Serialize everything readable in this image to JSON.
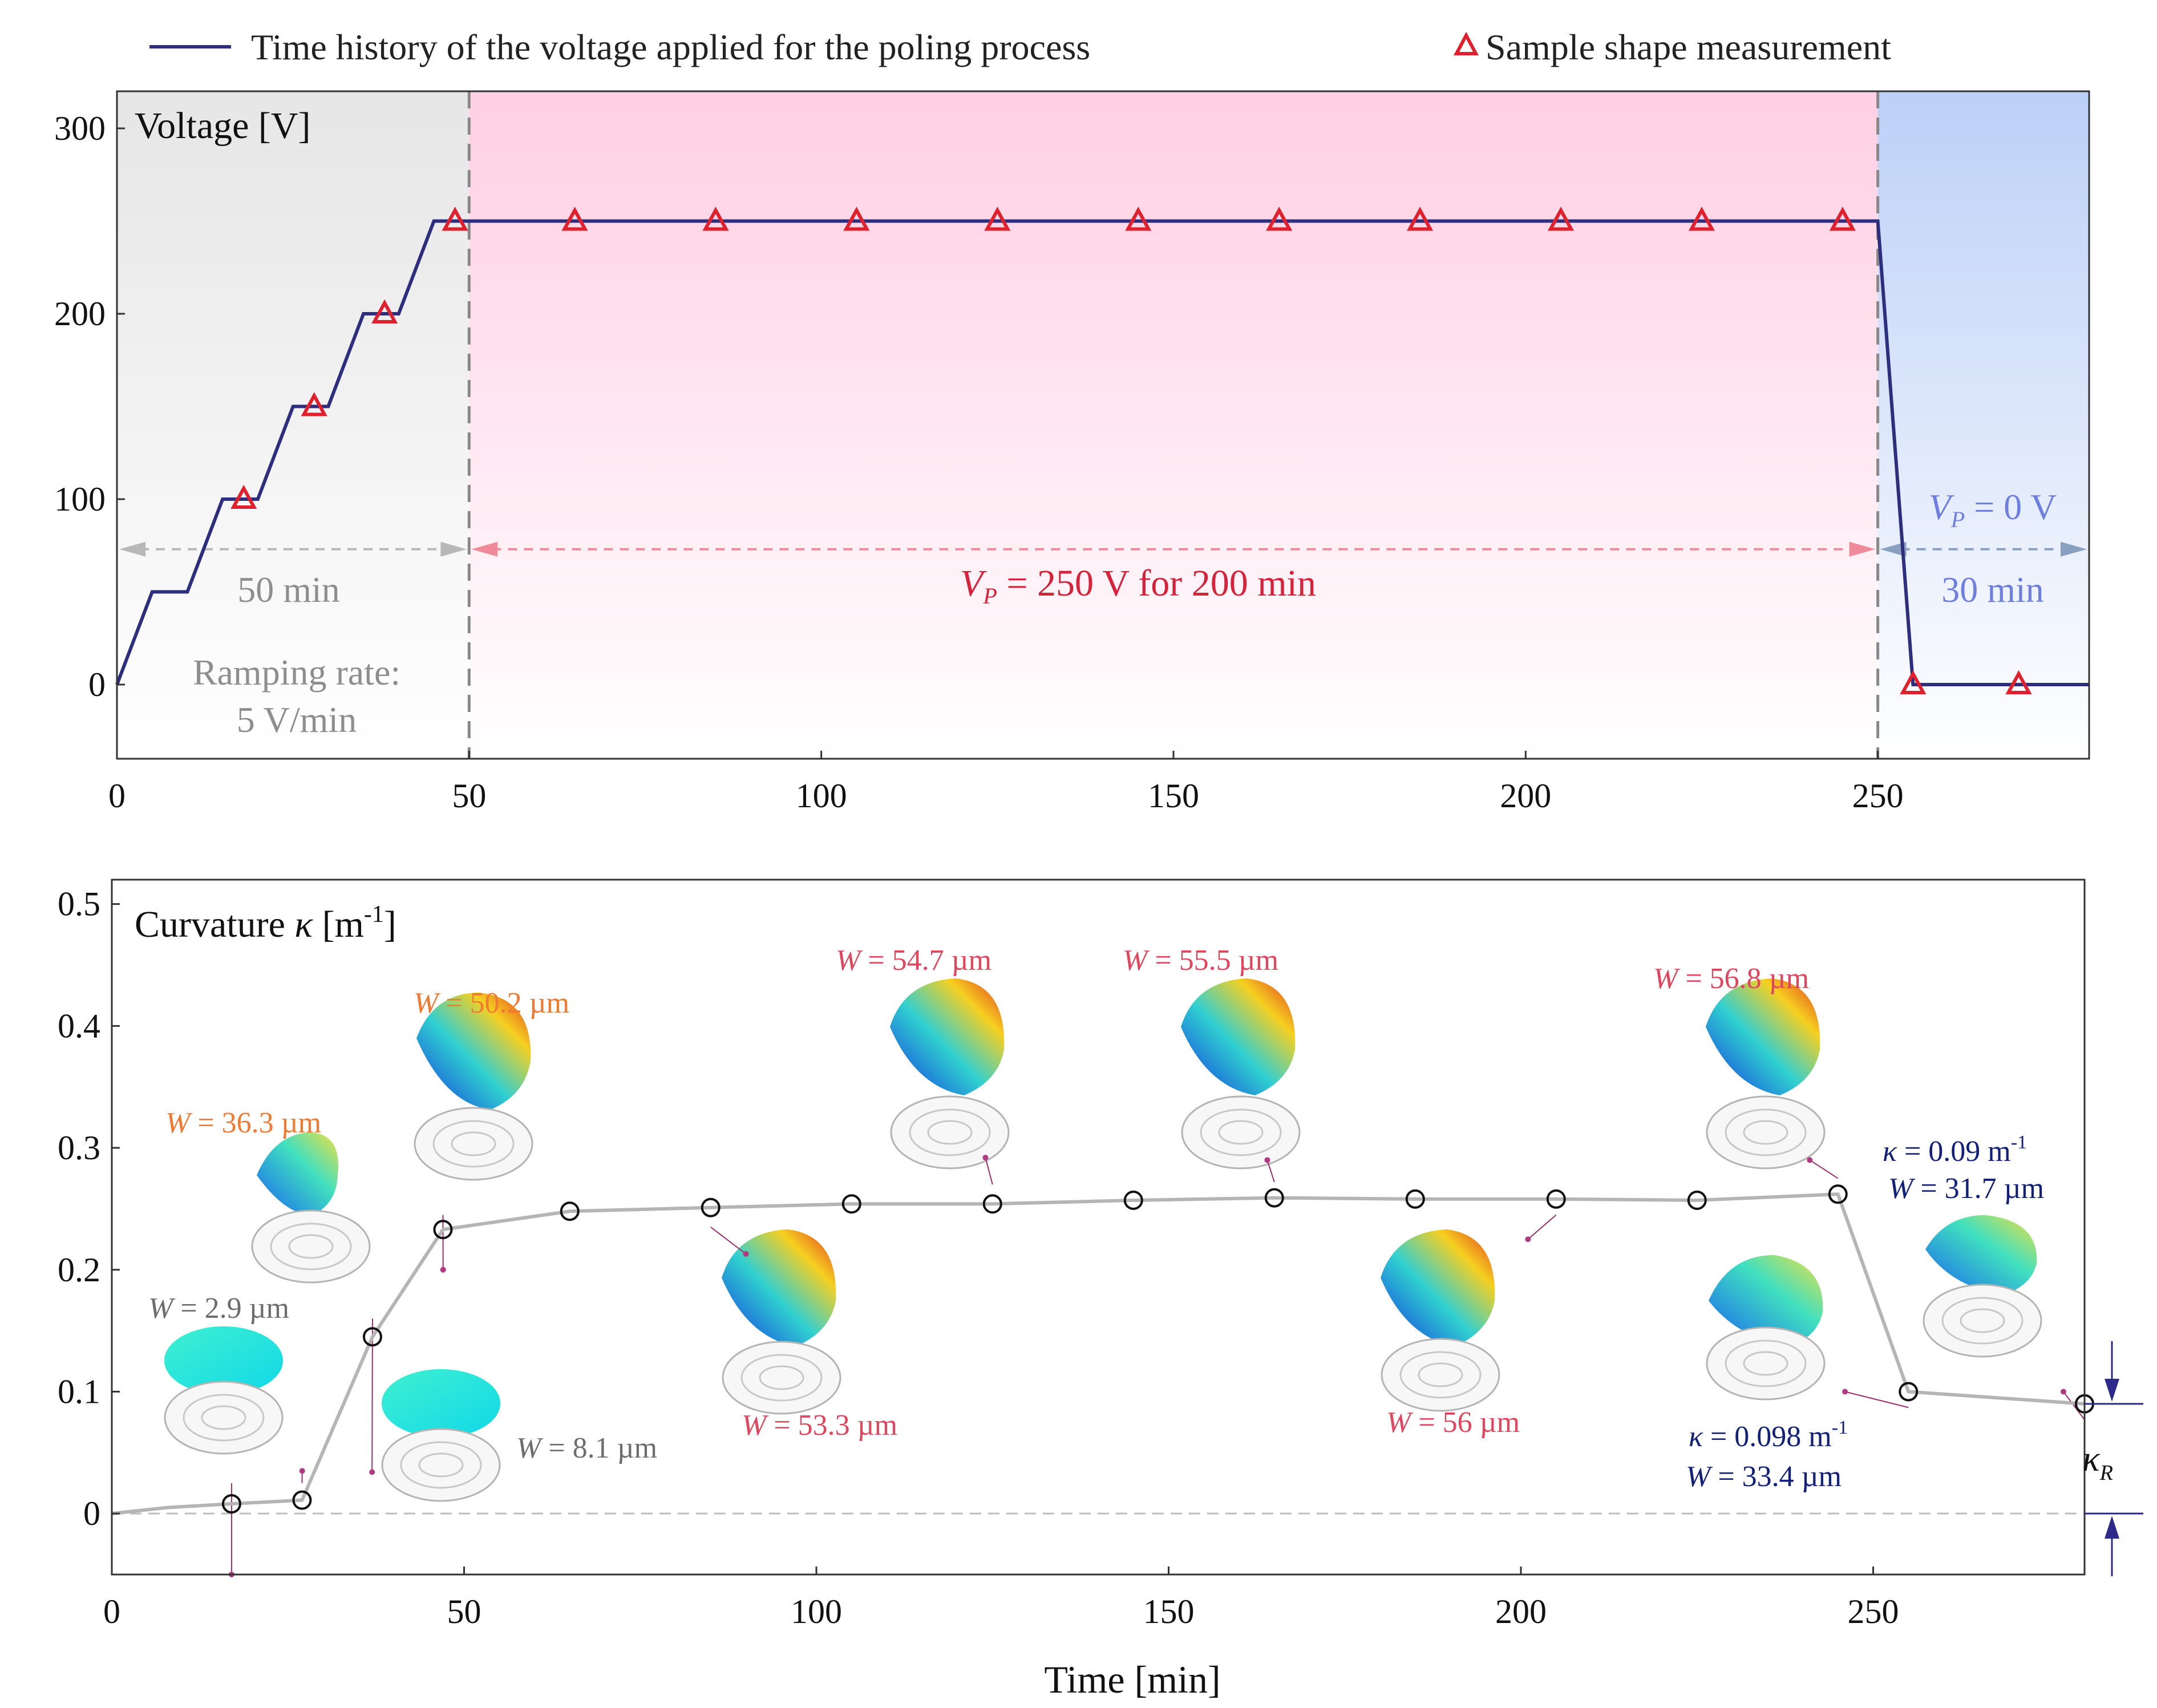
{
  "colors": {
    "voltage_line": "#2d2f7e",
    "marker_red": "#e0202c",
    "curv_line": "#b5b5b5",
    "gray_text": "#8e8e8e",
    "red_text": "#d6223a",
    "blue_text": "#6f7fe0",
    "orange_text": "#f07a32",
    "pink_text": "#e0465e",
    "navy_text": "#12207a",
    "arrow_navy": "#2d2a8a"
  },
  "chart_data": [
    {
      "type": "line",
      "panel": "top",
      "legend": {
        "line_label": "Time history of the voltage applied for the poling process",
        "marker_label": "Sample shape measurement"
      },
      "ylabel": "Voltage [V]",
      "xlim": [
        0,
        280
      ],
      "ylim": [
        -40,
        320
      ],
      "xticks": [
        0,
        50,
        100,
        150,
        200,
        250
      ],
      "yticks": [
        0,
        100,
        200,
        300
      ],
      "series": [
        {
          "name": "Time history of the voltage applied for the poling process",
          "x": [
            0,
            5,
            10,
            15,
            20,
            25,
            30,
            35,
            40,
            45,
            250,
            255,
            280
          ],
          "y": [
            0,
            50,
            50,
            100,
            100,
            150,
            150,
            200,
            200,
            250,
            250,
            0,
            0
          ]
        },
        {
          "name": "Sample shape measurement",
          "x": [
            18,
            28,
            38,
            48,
            65,
            85,
            105,
            125,
            145,
            165,
            185,
            205,
            225,
            245,
            255,
            270
          ],
          "y": [
            100,
            150,
            200,
            250,
            250,
            250,
            250,
            250,
            250,
            250,
            250,
            250,
            250,
            250,
            0,
            0
          ]
        }
      ],
      "regions": [
        {
          "x": [
            0,
            50
          ],
          "label": "50 min",
          "note_line1": "Ramping rate:",
          "note_line2": "5 V/min"
        },
        {
          "x": [
            50,
            250
          ],
          "label_v": "V",
          "label_sub": "P",
          "label_rest": " = 250 V for 200 min"
        },
        {
          "x": [
            250,
            280
          ],
          "label_v": "V",
          "label_sub": "P",
          "label_rest": " = 0 V",
          "duration": "30 min"
        }
      ]
    },
    {
      "type": "line",
      "panel": "bottom",
      "ylabel_prefix": "Curvature ",
      "ylabel_symbol": "κ",
      "ylabel_unit": " [m",
      "ylabel_exp": "-1",
      "ylabel_close": "]",
      "xlabel": "Time [min]",
      "xlim": [
        0,
        280
      ],
      "ylim": [
        -0.05,
        0.52
      ],
      "xticks": [
        0,
        50,
        100,
        150,
        200,
        250
      ],
      "yticks": [
        0,
        0.1,
        0.2,
        0.3,
        0.4,
        0.5
      ],
      "ytick_labels": [
        "0",
        "0.1",
        "0.2",
        "0.3",
        "0.4",
        "0.5"
      ],
      "series": [
        {
          "name": "Curvature",
          "x": [
            0,
            8,
            17,
            27,
            37,
            47,
            65,
            85,
            105,
            125,
            145,
            165,
            185,
            205,
            225,
            245,
            255,
            280
          ],
          "y": [
            0,
            0.005,
            0.008,
            0.011,
            0.145,
            0.233,
            0.248,
            0.251,
            0.254,
            0.254,
            0.257,
            0.259,
            0.258,
            0.258,
            0.257,
            0.262,
            0.1,
            0.09
          ]
        }
      ],
      "markers_x": [
        17,
        27,
        37,
        47,
        65,
        85,
        105,
        125,
        145,
        165,
        185,
        205,
        225,
        245,
        255,
        280
      ],
      "annotations": [
        {
          "w": "W",
          "rest": " = 2.9 µm",
          "color": "gray"
        },
        {
          "w": "W",
          "rest": " = 8.1 µm",
          "color": "gray"
        },
        {
          "w": "W",
          "rest": " = 36.3 µm",
          "color": "orange"
        },
        {
          "w": "W",
          "rest": " = 50.2 µm",
          "color": "orange"
        },
        {
          "w": "W",
          "rest": " = 53.3 µm",
          "color": "pink"
        },
        {
          "w": "W",
          "rest": " = 54.7 µm",
          "color": "pink"
        },
        {
          "w": "W",
          "rest": " = 55.5 µm",
          "color": "pink"
        },
        {
          "w": "W",
          "rest": " = 56 µm",
          "color": "pink"
        },
        {
          "w": "W",
          "rest": " = 56.8 µm",
          "color": "pink"
        },
        {
          "w": "W",
          "rest": " = 33.4 µm",
          "color": "navy"
        },
        {
          "w": "W",
          "rest": " = 31.7 µm",
          "color": "navy"
        }
      ],
      "kappa_notes": [
        {
          "sym": "κ",
          "rest": " = 0.098 m",
          "exp": "-1"
        },
        {
          "sym": "κ",
          "rest": " = 0.09 m",
          "exp": "-1"
        }
      ],
      "residual_label": "κ",
      "residual_sub": "R"
    }
  ]
}
